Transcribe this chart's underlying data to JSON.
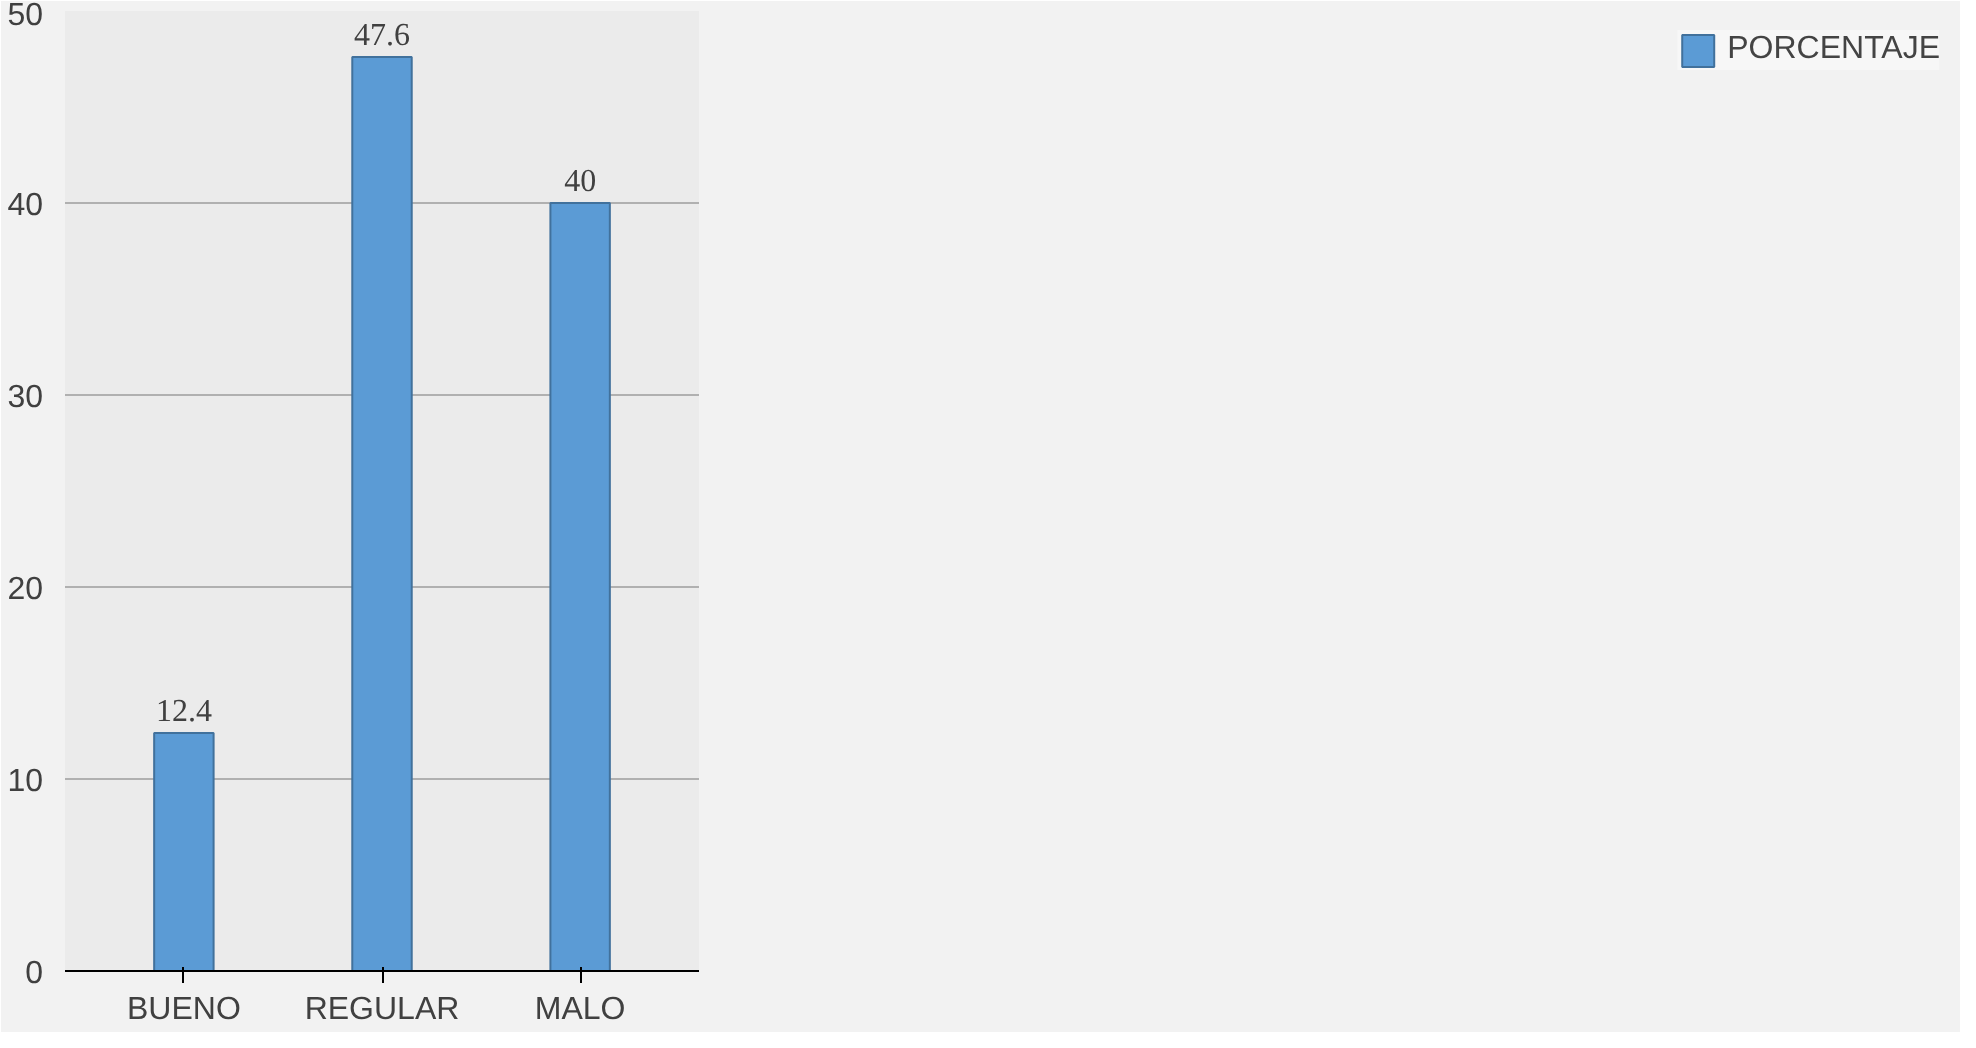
{
  "chart_data": {
    "type": "bar",
    "categories": [
      "BUENO",
      "REGULAR",
      "MALO"
    ],
    "series": [
      {
        "name": "PORCENTAJE",
        "color": "#5b9bd5",
        "values": [
          12.4,
          47.6,
          40
        ]
      }
    ],
    "ylim": [
      0,
      50
    ],
    "yticks": [
      0,
      10,
      20,
      30,
      40,
      50
    ],
    "grid": "y",
    "legend": "right",
    "data_labels": true
  }
}
